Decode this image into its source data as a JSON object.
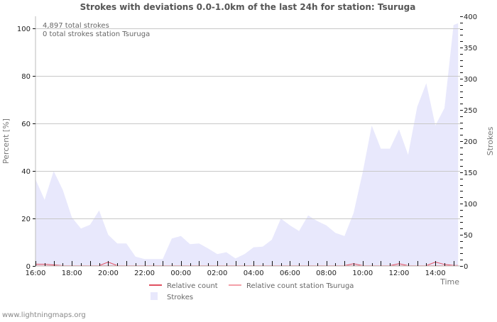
{
  "chart_data": {
    "type": "area",
    "title": "Strokes with deviations 0.0-1.0km of the last 24h for station: Tsuruga",
    "info_lines": [
      "4,897 total strokes",
      "0 total strokes station Tsuruga"
    ],
    "xlabel": "Time",
    "ylabel_left": "Percent   [%]",
    "ylabel_right": "Strokes",
    "x_ticks": [
      "16:00",
      "18:00",
      "20:00",
      "22:00",
      "00:00",
      "02:00",
      "04:00",
      "06:00",
      "08:00",
      "10:00",
      "12:00",
      "14:00"
    ],
    "y_left_ticks": [
      0,
      20,
      40,
      60,
      80,
      100
    ],
    "y_right_ticks": [
      0,
      50,
      100,
      150,
      200,
      250,
      300,
      350,
      400
    ],
    "ylim_left": [
      0,
      105
    ],
    "ylim_right": [
      0,
      400
    ],
    "grid": true,
    "legend_position": "bottom",
    "x": [
      "16:00",
      "16:30",
      "17:00",
      "17:30",
      "18:00",
      "18:30",
      "19:00",
      "19:30",
      "20:00",
      "20:30",
      "21:00",
      "21:30",
      "22:00",
      "22:30",
      "23:00",
      "23:30",
      "00:00",
      "00:30",
      "01:00",
      "01:30",
      "02:00",
      "02:30",
      "03:00",
      "03:30",
      "04:00",
      "04:30",
      "05:00",
      "05:30",
      "06:00",
      "06:30",
      "07:00",
      "07:30",
      "08:00",
      "08:30",
      "09:00",
      "09:30",
      "10:00",
      "10:30",
      "11:00",
      "11:30",
      "12:00",
      "12:30",
      "13:00",
      "13:30",
      "14:00",
      "14:30",
      "15:00",
      "15:15"
    ],
    "series": [
      {
        "name": "Strokes",
        "axis": "right",
        "kind": "area",
        "color": "#e8e8fc",
        "values": [
          139,
          106,
          152,
          122,
          78,
          60,
          66,
          89,
          50,
          36,
          36,
          15,
          11,
          11,
          11,
          44,
          48,
          35,
          36,
          28,
          19,
          22,
          12,
          19,
          30,
          31,
          42,
          76,
          65,
          56,
          81,
          72,
          65,
          53,
          48,
          85,
          150,
          225,
          188,
          188,
          219,
          178,
          255,
          293,
          225,
          253,
          386,
          389
        ]
      },
      {
        "name": "Relative count",
        "axis": "left",
        "kind": "line",
        "color": "#e05060",
        "values": [
          0.6,
          0.6,
          0.3,
          0,
          0,
          0,
          0,
          0,
          1.5,
          0,
          0,
          0,
          0,
          0,
          0,
          0,
          0,
          0,
          0,
          0,
          0,
          0,
          0,
          0,
          0,
          0,
          0,
          0,
          0,
          0,
          0,
          0,
          0,
          0,
          0,
          0.8,
          0,
          0,
          0,
          0,
          0.8,
          0,
          0,
          0,
          1.5,
          0.5,
          0.1,
          0.1
        ]
      },
      {
        "name": "Relative count station Tsuruga",
        "axis": "left",
        "kind": "line",
        "color": "#f4a0a8",
        "values": [
          0,
          0,
          0,
          0,
          0,
          0,
          0,
          0,
          0,
          0,
          0,
          0,
          0,
          0,
          0,
          0,
          0,
          0,
          0,
          0,
          0,
          0,
          0,
          0,
          0,
          0,
          0,
          0,
          0,
          0,
          0,
          0,
          0,
          0,
          0,
          0,
          0,
          0,
          0,
          0,
          0,
          0,
          0,
          0,
          0,
          0,
          0,
          0
        ]
      }
    ]
  },
  "legend": {
    "items": [
      {
        "label": "Relative count",
        "color": "#e05060"
      },
      {
        "label": "Relative count station Tsuruga",
        "color": "#f4a0a8"
      },
      {
        "label": "Strokes",
        "color": "#e8e8fc"
      }
    ]
  },
  "footer": {
    "text": "www.lightningmaps.org"
  }
}
